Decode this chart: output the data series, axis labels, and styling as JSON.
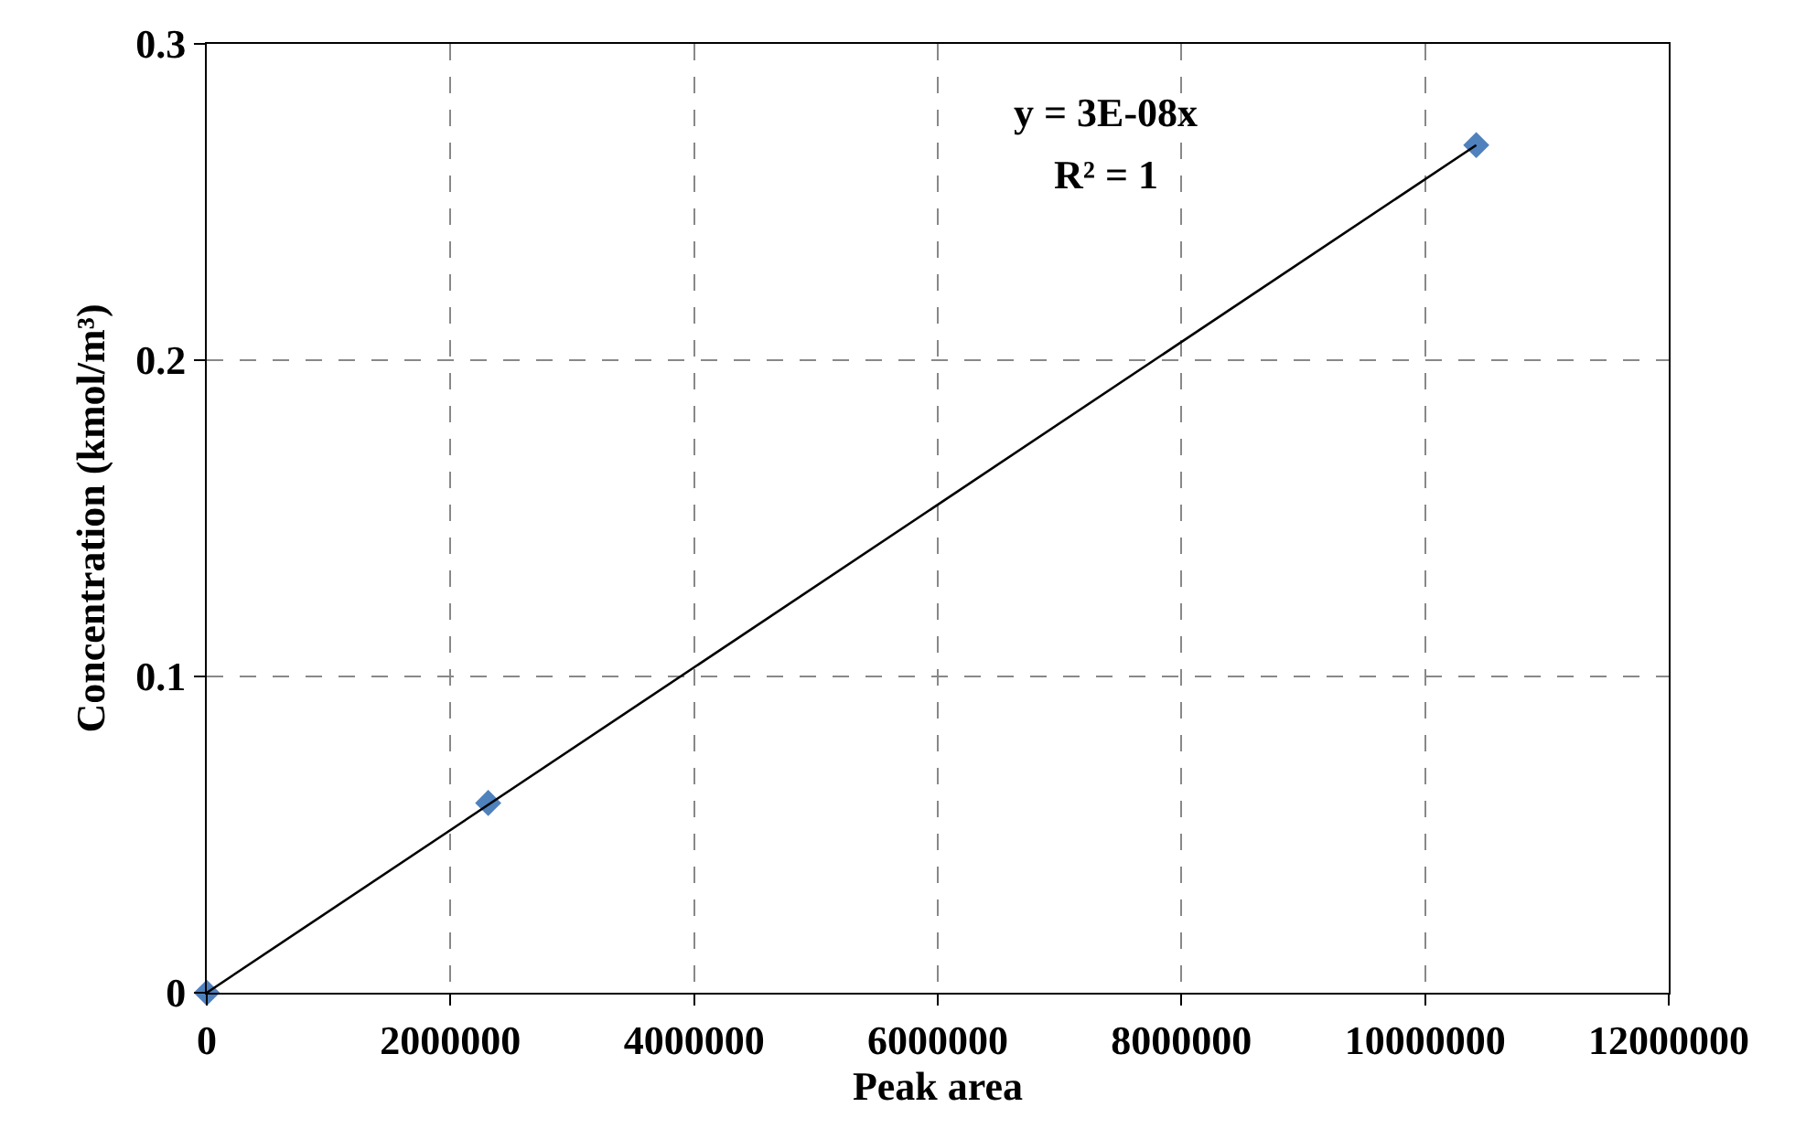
{
  "chart_data": {
    "type": "scatter",
    "xlabel": "Peak area",
    "ylabel": "Concentration (kmol/m³)",
    "xlim": [
      0,
      12000000
    ],
    "xticks": [
      0,
      2000000,
      4000000,
      6000000,
      8000000,
      10000000,
      12000000
    ],
    "ylim": [
      0,
      0.3
    ],
    "yticks": [
      0,
      0.1,
      0.2,
      0.3
    ],
    "grid": true,
    "legend": false,
    "annotations": [
      "y = 3E-08x",
      "R² = 1"
    ],
    "series": [
      {
        "marker": "diamond",
        "color": "#4f81bd",
        "x": [
          0,
          2310000,
          10420000
        ],
        "values": [
          0,
          0.06,
          0.268
        ]
      },
      {
        "type": "line",
        "marker": "none",
        "line_style": "solid",
        "color": "#000000",
        "x": [
          0,
          10420000
        ],
        "values": [
          0,
          0.268
        ]
      }
    ]
  }
}
